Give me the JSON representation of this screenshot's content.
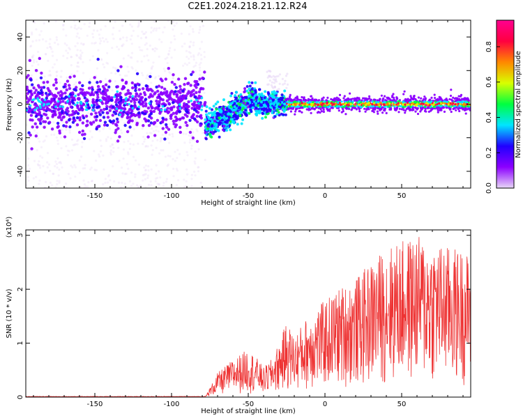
{
  "title": "C2E1.2024.218.21.12.R24",
  "chart_data": [
    {
      "type": "heatmap",
      "name": "spectrogram",
      "xlabel": "Height of straight line (km)",
      "ylabel": "Frequency (Hz)",
      "xlim": [
        -195,
        95
      ],
      "ylim": [
        -50,
        50
      ],
      "xticks": [
        -150,
        -100,
        -50,
        0,
        50
      ],
      "yticks": [
        -40,
        -20,
        0,
        20,
        40
      ],
      "colorbar": {
        "label": "Normalized spectral amplitude",
        "range": [
          0,
          0.95
        ],
        "ticks": [
          0.0,
          0.2,
          0.4,
          0.6,
          0.8
        ],
        "colormap": [
          "#e8d7f6",
          "#8c00ff",
          "#2000ff",
          "#00e5ff",
          "#00ff40",
          "#d8ff00",
          "#ff8800",
          "#ff0040",
          "#ff0090"
        ]
      },
      "regions": [
        {
          "x_range": [
            -195,
            -78
          ],
          "freq_center": 0,
          "core_spread_hz": 8,
          "scatter_spread_hz": 50,
          "amplitude": 0.2
        },
        {
          "x_range": [
            -78,
            -45
          ],
          "freq_center_start": -14,
          "freq_center_end": 4,
          "spread_hz": 4,
          "amplitude": 0.4
        },
        {
          "x_range": [
            -45,
            -25
          ],
          "freq_center": 0,
          "spread_hz": 3,
          "amplitude": 0.4
        },
        {
          "x_range": [
            -25,
            95
          ],
          "freq_center": 0,
          "spread_hz": 2,
          "amplitude": 0.85
        }
      ]
    },
    {
      "type": "line",
      "name": "snr",
      "xlabel": "Height of straight line (km)",
      "ylabel": "SNR (10 * v/v)",
      "y_multiplier": "(x10⁴)",
      "xlim": [
        -195,
        95
      ],
      "ylim": [
        0,
        3.1
      ],
      "xticks": [
        -150,
        -100,
        -50,
        0,
        50
      ],
      "yticks": [
        0,
        1,
        2,
        3
      ],
      "color": "#ee3333",
      "envelope": {
        "x": [
          -195,
          -78,
          -70,
          -60,
          -50,
          -45,
          -40,
          -35,
          -30,
          -25,
          -20,
          -15,
          -10,
          0,
          10,
          20,
          30,
          40,
          50,
          60,
          70,
          80,
          90,
          95
        ],
        "y_max": [
          0.01,
          0.01,
          0.45,
          0.7,
          0.9,
          0.75,
          0.55,
          0.7,
          1.0,
          1.4,
          1.15,
          1.35,
          1.55,
          1.8,
          2.05,
          2.2,
          2.5,
          2.8,
          2.9,
          3.0,
          2.9,
          2.8,
          2.75,
          2.6
        ]
      }
    }
  ]
}
